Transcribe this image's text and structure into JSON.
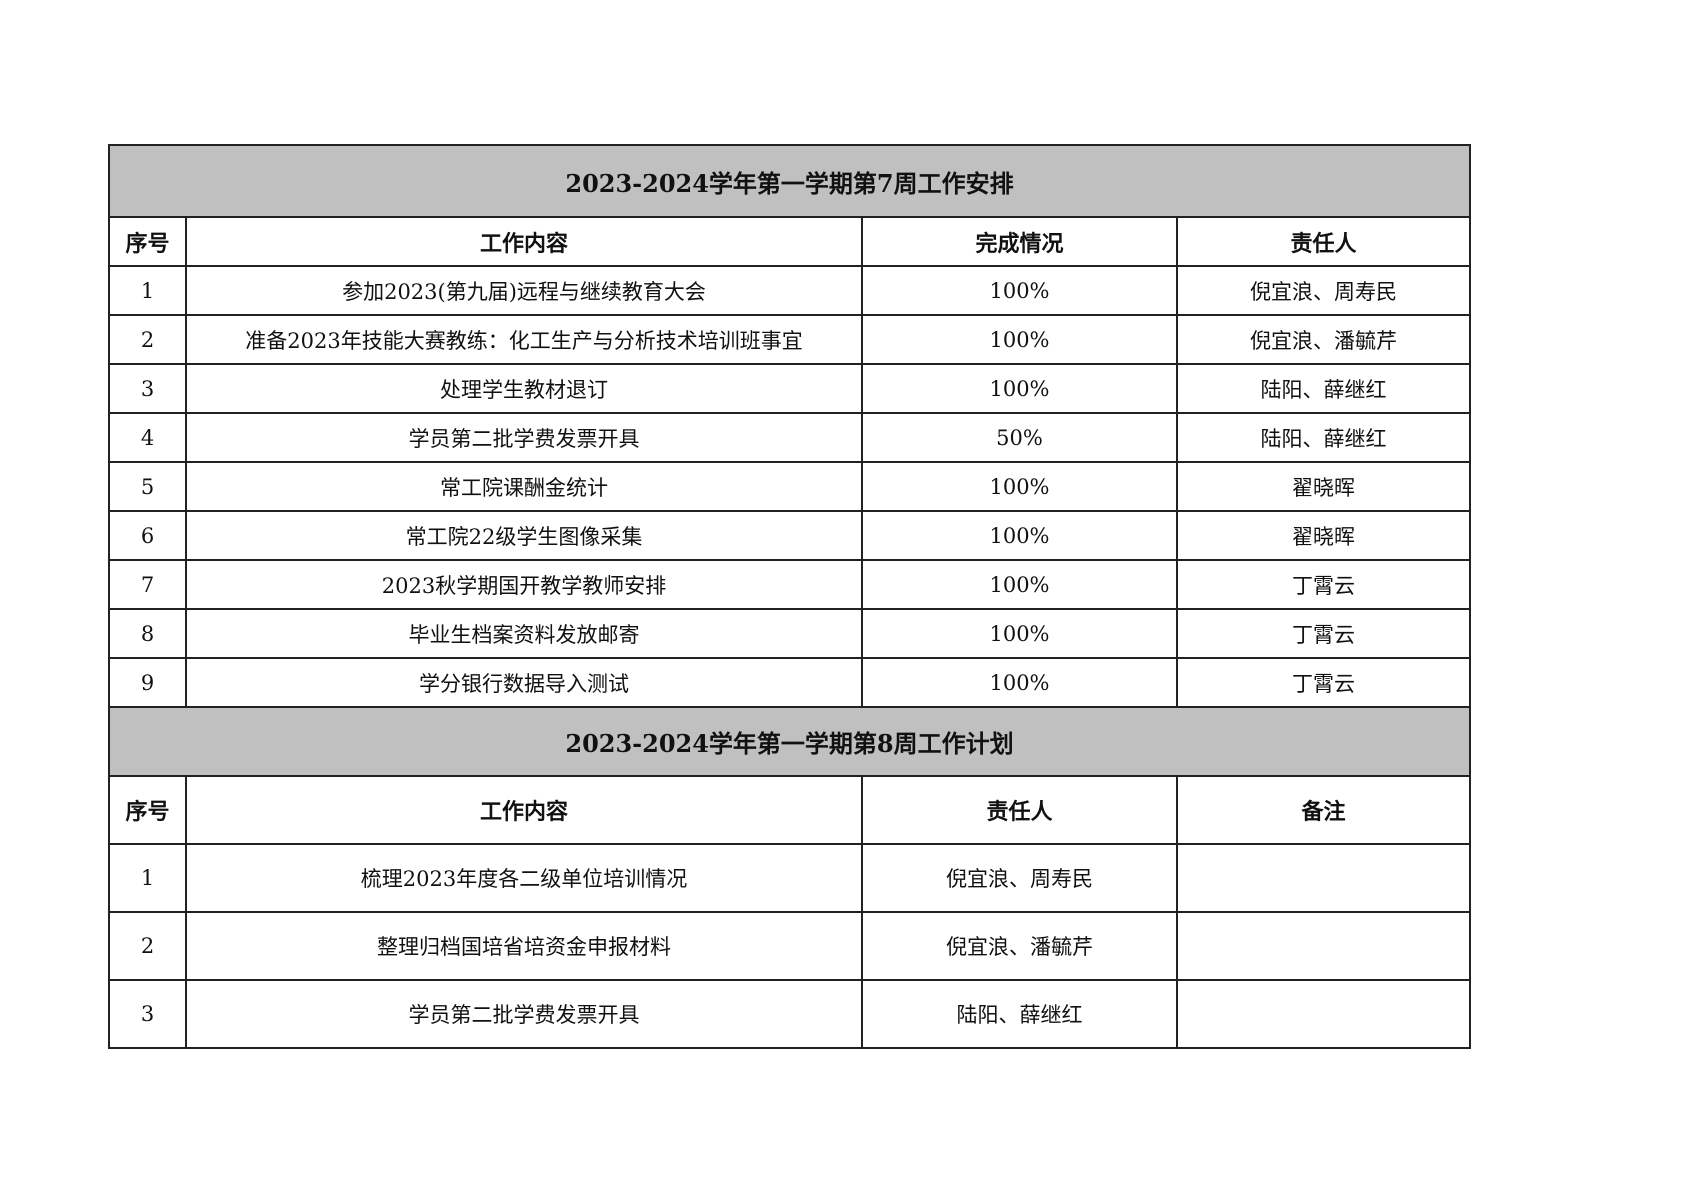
{
  "week7": {
    "title": "2023-2024学年第一学期第7周工作安排",
    "headers": [
      "序号",
      "工作内容",
      "完成情况",
      "责任人"
    ],
    "rows": [
      [
        "1",
        "参加2023(第九届)远程与继续教育大会",
        "100%",
        "倪宜浪、周寿民"
      ],
      [
        "2",
        "准备2023年技能大赛教练：化工生产与分析技术培训班事宜",
        "100%",
        "倪宜浪、潘毓芹"
      ],
      [
        "3",
        "处理学生教材退订",
        "100%",
        "陆阳、薛继红"
      ],
      [
        "4",
        "学员第二批学费发票开具",
        "50%",
        "陆阳、薛继红"
      ],
      [
        "5",
        "常工院课酬金统计",
        "100%",
        "翟晓晖"
      ],
      [
        "6",
        "常工院22级学生图像采集",
        "100%",
        "翟晓晖"
      ],
      [
        "7",
        "2023秋学期国开教学教师安排",
        "100%",
        "丁霄云"
      ],
      [
        "8",
        "毕业生档案资料发放邮寄",
        "100%",
        "丁霄云"
      ],
      [
        "9",
        "学分银行数据导入测试",
        "100%",
        "丁霄云"
      ]
    ]
  },
  "week8": {
    "title": "2023-2024学年第一学期第8周工作计划",
    "headers": [
      "序号",
      "工作内容",
      "责任人",
      "备注"
    ],
    "rows": [
      [
        "1",
        "梳理2023年度各二级单位培训情况",
        "倪宜浪、周寿民",
        ""
      ],
      [
        "2",
        "整理归档国培省培资金申报材料",
        "倪宜浪、潘毓芹",
        ""
      ],
      [
        "3",
        "学员第二批学费发票开具",
        "陆阳、薛继红",
        ""
      ]
    ]
  },
  "colors": {
    "title_bg": "#c0c0c0",
    "border": "#222222"
  }
}
